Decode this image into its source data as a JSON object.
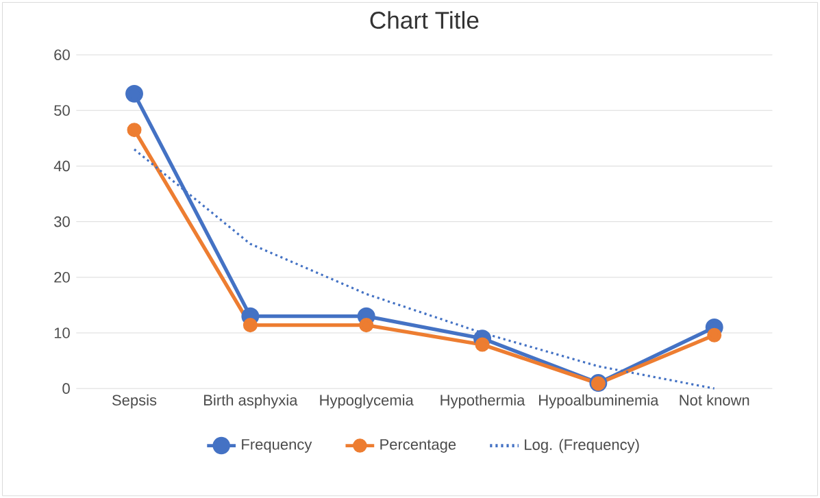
{
  "chart_data": {
    "type": "line",
    "title": "Chart Title",
    "categories": [
      "Sepsis",
      "Birth asphyxia",
      "Hypoglycemia",
      "Hypothermia",
      "Hypoalbuminemia",
      "Not known"
    ],
    "series": [
      {
        "name": "Frequency",
        "color": "#4472c4",
        "values": [
          53,
          13,
          13,
          9,
          1,
          11
        ],
        "marker": "circle",
        "line_style": "solid"
      },
      {
        "name": "Percentage",
        "color": "#ed7d31",
        "values": [
          46.5,
          11.4,
          11.4,
          7.9,
          0.9,
          9.6
        ],
        "marker": "circle",
        "line_style": "solid"
      },
      {
        "name": "Log. (Frequency)",
        "color": "#4472c4",
        "values": [
          43,
          26,
          17,
          10,
          4,
          0
        ],
        "marker": "none",
        "line_style": "dotted"
      }
    ],
    "ylim": [
      0,
      60
    ],
    "yticks": [
      0,
      10,
      20,
      30,
      40,
      50,
      60
    ],
    "grid": "y",
    "legend": "bottom"
  }
}
